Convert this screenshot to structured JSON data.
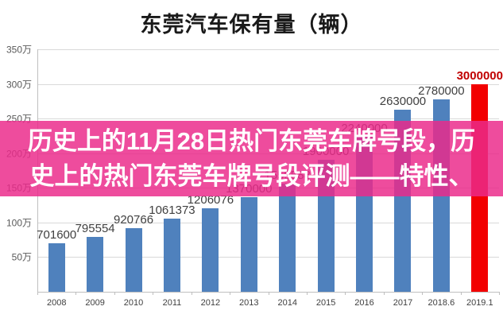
{
  "title": "东莞汽车保有量（辆）",
  "overlay": {
    "line1": "历史上的11月28日热门东莞车牌号段，历",
    "line2": "史上的热门东莞车牌号段评测——特性、",
    "bg_color_rgba": "rgba(235,42,138,0.84)",
    "text_color": "#ffffff"
  },
  "chart_data": {
    "type": "bar",
    "title": "东莞汽车保有量（辆）",
    "categories": [
      "2008",
      "2009",
      "2010",
      "2011",
      "2012",
      "2013",
      "2014",
      "2015",
      "2016",
      "2017",
      "2018.6",
      "2019.1"
    ],
    "values": [
      701600,
      795554,
      920766,
      1061373,
      1206076,
      1370000,
      1559588,
      1900000,
      2240000,
      2630000,
      2780000,
      3000000
    ],
    "value_labels": [
      "701600",
      "795554",
      "920766",
      "1061373",
      "1206076",
      "1370000",
      "1559588",
      "1900000",
      "2240000",
      "2630000",
      "2780000",
      "3000000"
    ],
    "highlight_index": 11,
    "bar_color": "#4f81bd",
    "highlight_bar_color": "#f20000",
    "label_color": "#404040",
    "highlight_label_color": "#c00000",
    "grid_color": "#d9d9d9",
    "axis_color": "#bfbfbf",
    "xlabel": "",
    "ylabel": "",
    "ylim": [
      0,
      3500000
    ],
    "grid": true,
    "legend": "none",
    "y_ticks": [
      {
        "label": "50万",
        "value": 500000
      },
      {
        "label": "100万",
        "value": 1000000
      },
      {
        "label": "150万",
        "value": 1500000
      },
      {
        "label": "200万",
        "value": 2000000
      },
      {
        "label": "250万",
        "value": 2500000
      },
      {
        "label": "300万",
        "value": 3000000
      },
      {
        "label": "350万",
        "value": 3500000
      }
    ]
  }
}
